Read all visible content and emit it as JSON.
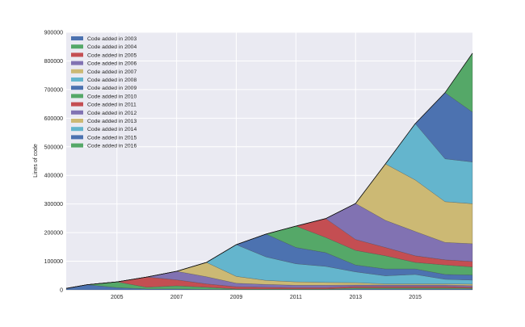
{
  "chart_data": {
    "type": "area",
    "stacked": true,
    "title": "",
    "xlabel": "",
    "ylabel": "Lines of code",
    "xlim": [
      2003.3,
      2016.92
    ],
    "ylim": [
      0,
      900000
    ],
    "xticks": [
      2005,
      2007,
      2009,
      2011,
      2013,
      2015
    ],
    "yticks": [
      0,
      100000,
      200000,
      300000,
      400000,
      500000,
      600000,
      700000,
      800000,
      900000
    ],
    "grid": true,
    "legend_position": "top-left",
    "background_color": "#EAEAF2",
    "x": [
      2003.3,
      2004,
      2005,
      2006,
      2007,
      2008,
      2009,
      2010,
      2011,
      2012,
      2013,
      2014,
      2015,
      2016,
      2016.92
    ],
    "series": [
      {
        "name": "Code added in 2003",
        "color": "#4C72B0",
        "values": [
          5000,
          18000,
          8000,
          3000,
          3000,
          2000,
          1000,
          1000,
          1000,
          1000,
          3000,
          3000,
          3000,
          3000,
          3000
        ]
      },
      {
        "name": "Code added in 2004",
        "color": "#55A868",
        "values": [
          0,
          0,
          20000,
          6000,
          11000,
          7000,
          2000,
          2000,
          2000,
          2000,
          4000,
          4000,
          4000,
          4000,
          3000
        ]
      },
      {
        "name": "Code added in 2005",
        "color": "#C44E52",
        "values": [
          0,
          0,
          0,
          36000,
          21000,
          12000,
          8000,
          6000,
          5000,
          5000,
          5000,
          5000,
          5000,
          5000,
          4000
        ]
      },
      {
        "name": "Code added in 2006",
        "color": "#8172B2",
        "values": [
          0,
          0,
          0,
          0,
          30000,
          25000,
          12000,
          10000,
          8000,
          8000,
          5000,
          5000,
          5000,
          5000,
          5000
        ]
      },
      {
        "name": "Code added in 2007",
        "color": "#CCB974",
        "values": [
          0,
          0,
          0,
          0,
          0,
          50000,
          24000,
          14000,
          12000,
          10000,
          8000,
          4000,
          4000,
          4000,
          5000
        ]
      },
      {
        "name": "Code added in 2008",
        "color": "#64B5CD",
        "values": [
          0,
          0,
          0,
          0,
          0,
          0,
          111000,
          82000,
          63000,
          56000,
          38000,
          28000,
          33000,
          16000,
          14000
        ]
      },
      {
        "name": "Code added in 2009",
        "color": "#4C72B0",
        "values": [
          0,
          0,
          0,
          0,
          0,
          0,
          0,
          80000,
          57000,
          48000,
          24000,
          24000,
          19000,
          17000,
          18000
        ]
      },
      {
        "name": "Code added in 2010",
        "color": "#55A868",
        "values": [
          0,
          0,
          0,
          0,
          0,
          0,
          0,
          0,
          75000,
          53000,
          51000,
          46000,
          23000,
          33000,
          28000
        ]
      },
      {
        "name": "Code added in 2011",
        "color": "#C44E52",
        "values": [
          0,
          0,
          0,
          0,
          0,
          0,
          0,
          0,
          0,
          66000,
          38000,
          29000,
          23000,
          18000,
          19000
        ]
      },
      {
        "name": "Code added in 2012",
        "color": "#8172B2",
        "values": [
          0,
          0,
          0,
          0,
          0,
          0,
          0,
          0,
          0,
          0,
          126000,
          95000,
          85000,
          61000,
          62000
        ]
      },
      {
        "name": "Code added in 2013",
        "color": "#CCB974",
        "values": [
          0,
          0,
          0,
          0,
          0,
          0,
          0,
          0,
          0,
          0,
          0,
          197000,
          180000,
          142000,
          140000
        ]
      },
      {
        "name": "Code added in 2014",
        "color": "#64B5CD",
        "values": [
          0,
          0,
          0,
          0,
          0,
          0,
          0,
          0,
          0,
          0,
          0,
          0,
          197000,
          150000,
          146000
        ]
      },
      {
        "name": "Code added in 2015",
        "color": "#4C72B0",
        "values": [
          0,
          0,
          0,
          0,
          0,
          0,
          0,
          0,
          0,
          0,
          0,
          0,
          0,
          231000,
          174000
        ]
      },
      {
        "name": "Code added in 2016",
        "color": "#55A868",
        "values": [
          0,
          0,
          0,
          0,
          0,
          0,
          0,
          0,
          0,
          0,
          0,
          0,
          0,
          0,
          206000
        ]
      }
    ]
  }
}
